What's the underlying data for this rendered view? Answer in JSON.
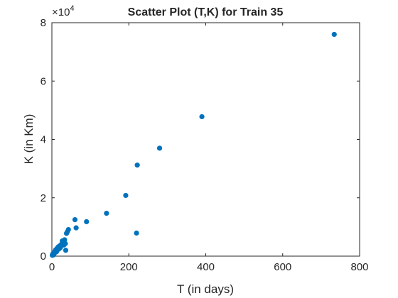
{
  "chart_data": {
    "type": "scatter",
    "title": "Scatter Plot (T,K) for Train 35",
    "xlabel": "T (in days)",
    "ylabel": "K (in Km)",
    "xlim": [
      0,
      800
    ],
    "ylim": [
      0,
      80000
    ],
    "x_ticks": [
      0,
      200,
      400,
      600,
      800
    ],
    "x_tick_labels": [
      "0",
      "200",
      "400",
      "600",
      "800"
    ],
    "y_ticks": [
      0,
      20000,
      40000,
      60000,
      80000
    ],
    "y_tick_labels": [
      "0",
      "2",
      "4",
      "6",
      "8"
    ],
    "y_exponent_base": "×10",
    "y_exponent_power": "4",
    "grid": false,
    "marker_color": "#0072BD",
    "points": [
      {
        "x": 1,
        "y": 300
      },
      {
        "x": 2,
        "y": 600
      },
      {
        "x": 3,
        "y": 900
      },
      {
        "x": 4,
        "y": 400
      },
      {
        "x": 5,
        "y": 1200
      },
      {
        "x": 6,
        "y": 800
      },
      {
        "x": 8,
        "y": 1600
      },
      {
        "x": 10,
        "y": 2200
      },
      {
        "x": 12,
        "y": 1500
      },
      {
        "x": 14,
        "y": 2700
      },
      {
        "x": 16,
        "y": 3100
      },
      {
        "x": 18,
        "y": 2400
      },
      {
        "x": 20,
        "y": 3500
      },
      {
        "x": 22,
        "y": 2900
      },
      {
        "x": 25,
        "y": 4100
      },
      {
        "x": 27,
        "y": 5200
      },
      {
        "x": 29,
        "y": 4600
      },
      {
        "x": 31,
        "y": 3800
      },
      {
        "x": 33,
        "y": 5600
      },
      {
        "x": 35,
        "y": 4300
      },
      {
        "x": 36,
        "y": 2000
      },
      {
        "x": 38,
        "y": 7800
      },
      {
        "x": 40,
        "y": 8300
      },
      {
        "x": 43,
        "y": 9100
      },
      {
        "x": 60,
        "y": 12500
      },
      {
        "x": 63,
        "y": 9700
      },
      {
        "x": 90,
        "y": 11800
      },
      {
        "x": 142,
        "y": 14700
      },
      {
        "x": 192,
        "y": 20800
      },
      {
        "x": 220,
        "y": 7900
      },
      {
        "x": 222,
        "y": 31200
      },
      {
        "x": 280,
        "y": 37000
      },
      {
        "x": 390,
        "y": 47800
      },
      {
        "x": 734,
        "y": 76000
      }
    ]
  }
}
